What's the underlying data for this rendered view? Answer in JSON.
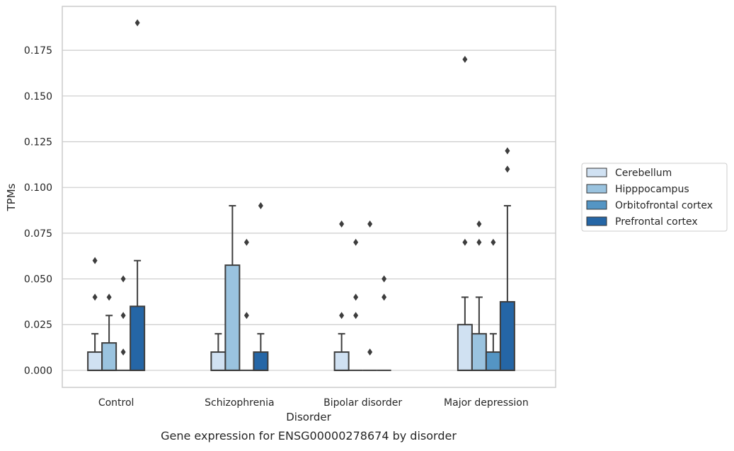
{
  "chart_data": {
    "type": "box",
    "title": "",
    "caption": "Gene expression for ENSG00000278674 by disorder",
    "xlabel": "Disorder",
    "ylabel": "TPMs",
    "ylim": [
      -0.0093,
      0.199
    ],
    "yticks": [
      0.0,
      0.025,
      0.05,
      0.075,
      0.1,
      0.125,
      0.15,
      0.175
    ],
    "ytick_labels": [
      "0.000",
      "0.025",
      "0.050",
      "0.075",
      "0.100",
      "0.125",
      "0.150",
      "0.175"
    ],
    "grid": "horizontal",
    "legend_position": "right",
    "categories": [
      "Control",
      "Schizophrenia",
      "Bipolar disorder",
      "Major depression"
    ],
    "series": [
      {
        "name": "Cerebellum",
        "color": "#d0e1f2",
        "boxes": [
          {
            "q1": 0.0,
            "median": 0.0,
            "q3": 0.01,
            "whisker_low": 0.0,
            "whisker_high": 0.02,
            "outliers": [
              0.04,
              0.06
            ]
          },
          {
            "q1": 0.0,
            "median": 0.0,
            "q3": 0.01,
            "whisker_low": 0.0,
            "whisker_high": 0.02,
            "outliers": []
          },
          {
            "q1": 0.0,
            "median": 0.0,
            "q3": 0.01,
            "whisker_low": 0.0,
            "whisker_high": 0.02,
            "outliers": [
              0.03,
              0.08
            ]
          },
          {
            "q1": 0.0,
            "median": 0.0,
            "q3": 0.025,
            "whisker_low": 0.0,
            "whisker_high": 0.04,
            "outliers": [
              0.07,
              0.17
            ]
          }
        ]
      },
      {
        "name": "Hipppocampus",
        "color": "#9ac3df",
        "boxes": [
          {
            "q1": 0.0,
            "median": 0.0,
            "q3": 0.015,
            "whisker_low": 0.0,
            "whisker_high": 0.03,
            "outliers": [
              0.04
            ]
          },
          {
            "q1": 0.0,
            "median": 0.0,
            "q3": 0.0575,
            "whisker_low": 0.0,
            "whisker_high": 0.09,
            "outliers": []
          },
          {
            "q1": 0.0,
            "median": 0.0,
            "q3": 0.0,
            "whisker_low": 0.0,
            "whisker_high": 0.0,
            "outliers": [
              0.03,
              0.04,
              0.07
            ]
          },
          {
            "q1": 0.0,
            "median": 0.0,
            "q3": 0.02,
            "whisker_low": 0.0,
            "whisker_high": 0.04,
            "outliers": [
              0.07,
              0.08
            ]
          }
        ]
      },
      {
        "name": "Orbitofrontal cortex",
        "color": "#5495c4",
        "boxes": [
          {
            "q1": 0.0,
            "median": 0.0,
            "q3": 0.0,
            "whisker_low": 0.0,
            "whisker_high": 0.0,
            "outliers": [
              0.01,
              0.03,
              0.05
            ]
          },
          {
            "q1": 0.0,
            "median": 0.0,
            "q3": 0.0,
            "whisker_low": 0.0,
            "whisker_high": 0.0,
            "outliers": [
              0.03,
              0.07
            ]
          },
          {
            "q1": 0.0,
            "median": 0.0,
            "q3": 0.0,
            "whisker_low": 0.0,
            "whisker_high": 0.0,
            "outliers": [
              0.01,
              0.08
            ]
          },
          {
            "q1": 0.0,
            "median": 0.0,
            "q3": 0.01,
            "whisker_low": 0.0,
            "whisker_high": 0.02,
            "outliers": [
              0.07
            ]
          }
        ]
      },
      {
        "name": "Prefrontal cortex",
        "color": "#2566a6",
        "boxes": [
          {
            "q1": 0.0,
            "median": 0.0,
            "q3": 0.035,
            "whisker_low": 0.0,
            "whisker_high": 0.06,
            "outliers": [
              0.19
            ]
          },
          {
            "q1": 0.0,
            "median": 0.0,
            "q3": 0.01,
            "whisker_low": 0.0,
            "whisker_high": 0.02,
            "outliers": [
              0.09
            ]
          },
          {
            "q1": 0.0,
            "median": 0.0,
            "q3": 0.0,
            "whisker_low": 0.0,
            "whisker_high": 0.0,
            "outliers": [
              0.04,
              0.05
            ]
          },
          {
            "q1": 0.0,
            "median": 0.0,
            "q3": 0.0375,
            "whisker_low": 0.0,
            "whisker_high": 0.09,
            "outliers": [
              0.11,
              0.12
            ]
          }
        ]
      }
    ]
  },
  "colors": {
    "grid": "#cccccc",
    "frame": "#cccccc",
    "box_edge": "#3d3d3d"
  }
}
